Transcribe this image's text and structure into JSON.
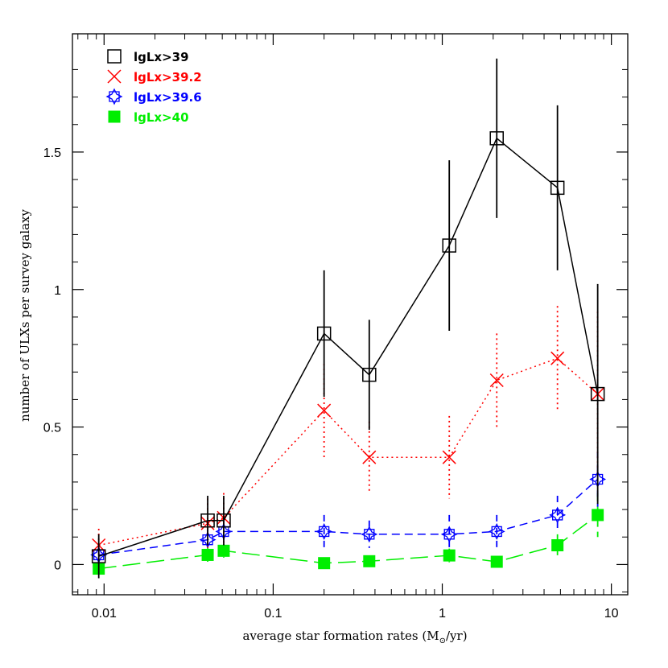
{
  "chart_data": {
    "type": "line",
    "xlabel": "average star formation rates (M",
    "xlabel_sub": "⊙",
    "xlabel_tail": "/yr)",
    "ylabel": "number of ULXs per survey galaxy",
    "xscale": "log",
    "xlim": [
      0.0065,
      12.5
    ],
    "ylim": [
      -0.11,
      1.93
    ],
    "x_ticks": [
      0.01,
      0.1,
      1,
      10
    ],
    "x_tick_labels": [
      "0.01",
      "0.1",
      "1",
      "10"
    ],
    "y_ticks": [
      0,
      0.5,
      1,
      1.5
    ],
    "y_tick_labels": [
      "0",
      "0.5",
      "1",
      "1.5"
    ],
    "grid": false,
    "legend_position": "top-left",
    "series": [
      {
        "name": "lgLx>39",
        "color": "#000000",
        "marker": "open-square",
        "line": "solid",
        "x": [
          0.0093,
          0.041,
          0.051,
          0.2,
          0.37,
          1.1,
          2.1,
          4.8,
          8.3
        ],
        "y": [
          0.03,
          0.16,
          0.16,
          0.84,
          0.69,
          1.16,
          1.55,
          1.37,
          0.62
        ],
        "err_low": [
          0.08,
          0.09,
          0.09,
          0.23,
          0.2,
          0.31,
          0.29,
          0.3,
          0.4
        ],
        "err_high": [
          0.08,
          0.09,
          0.09,
          0.23,
          0.2,
          0.31,
          0.29,
          0.3,
          0.4
        ]
      },
      {
        "name": "lgLx>39.2",
        "color": "#ff0000",
        "marker": "x",
        "line": "dotted",
        "x": [
          0.0093,
          0.041,
          0.051,
          0.2,
          0.37,
          1.1,
          2.1,
          4.8,
          8.3
        ],
        "y": [
          0.07,
          0.15,
          0.17,
          0.56,
          0.39,
          0.39,
          0.67,
          0.75,
          0.62
        ],
        "err_low": [
          0.06,
          0.09,
          0.09,
          0.17,
          0.13,
          0.15,
          0.17,
          0.19,
          0.3
        ],
        "err_high": [
          0.06,
          0.09,
          0.09,
          0.17,
          0.13,
          0.15,
          0.17,
          0.19,
          0.3
        ]
      },
      {
        "name": "lgLx>39.6",
        "color": "#0000ff",
        "marker": "open-star",
        "line": "dashed",
        "x": [
          0.0093,
          0.041,
          0.051,
          0.2,
          0.37,
          1.1,
          2.1,
          4.8,
          8.3
        ],
        "y": [
          0.035,
          0.09,
          0.12,
          0.12,
          0.11,
          0.11,
          0.12,
          0.18,
          0.31
        ],
        "err_low": [
          0.03,
          0.04,
          0.04,
          0.06,
          0.05,
          0.07,
          0.06,
          0.07,
          0.1
        ],
        "err_high": [
          0.03,
          0.04,
          0.04,
          0.06,
          0.05,
          0.07,
          0.06,
          0.07,
          0.1
        ]
      },
      {
        "name": "lgLx>40",
        "color": "#00ee00",
        "marker": "filled-square",
        "line": "long-dashed",
        "x": [
          0.0093,
          0.041,
          0.051,
          0.2,
          0.37,
          1.1,
          2.1,
          4.8,
          8.3
        ],
        "y": [
          -0.015,
          0.035,
          0.05,
          0.005,
          0.012,
          0.033,
          0.01,
          0.07,
          0.18
        ],
        "err_low": [
          0.02,
          0.025,
          0.025,
          0.015,
          0.015,
          0.025,
          0.015,
          0.04,
          0.08
        ],
        "err_high": [
          0.02,
          0.025,
          0.025,
          0.015,
          0.015,
          0.025,
          0.015,
          0.04,
          0.08
        ]
      }
    ]
  }
}
